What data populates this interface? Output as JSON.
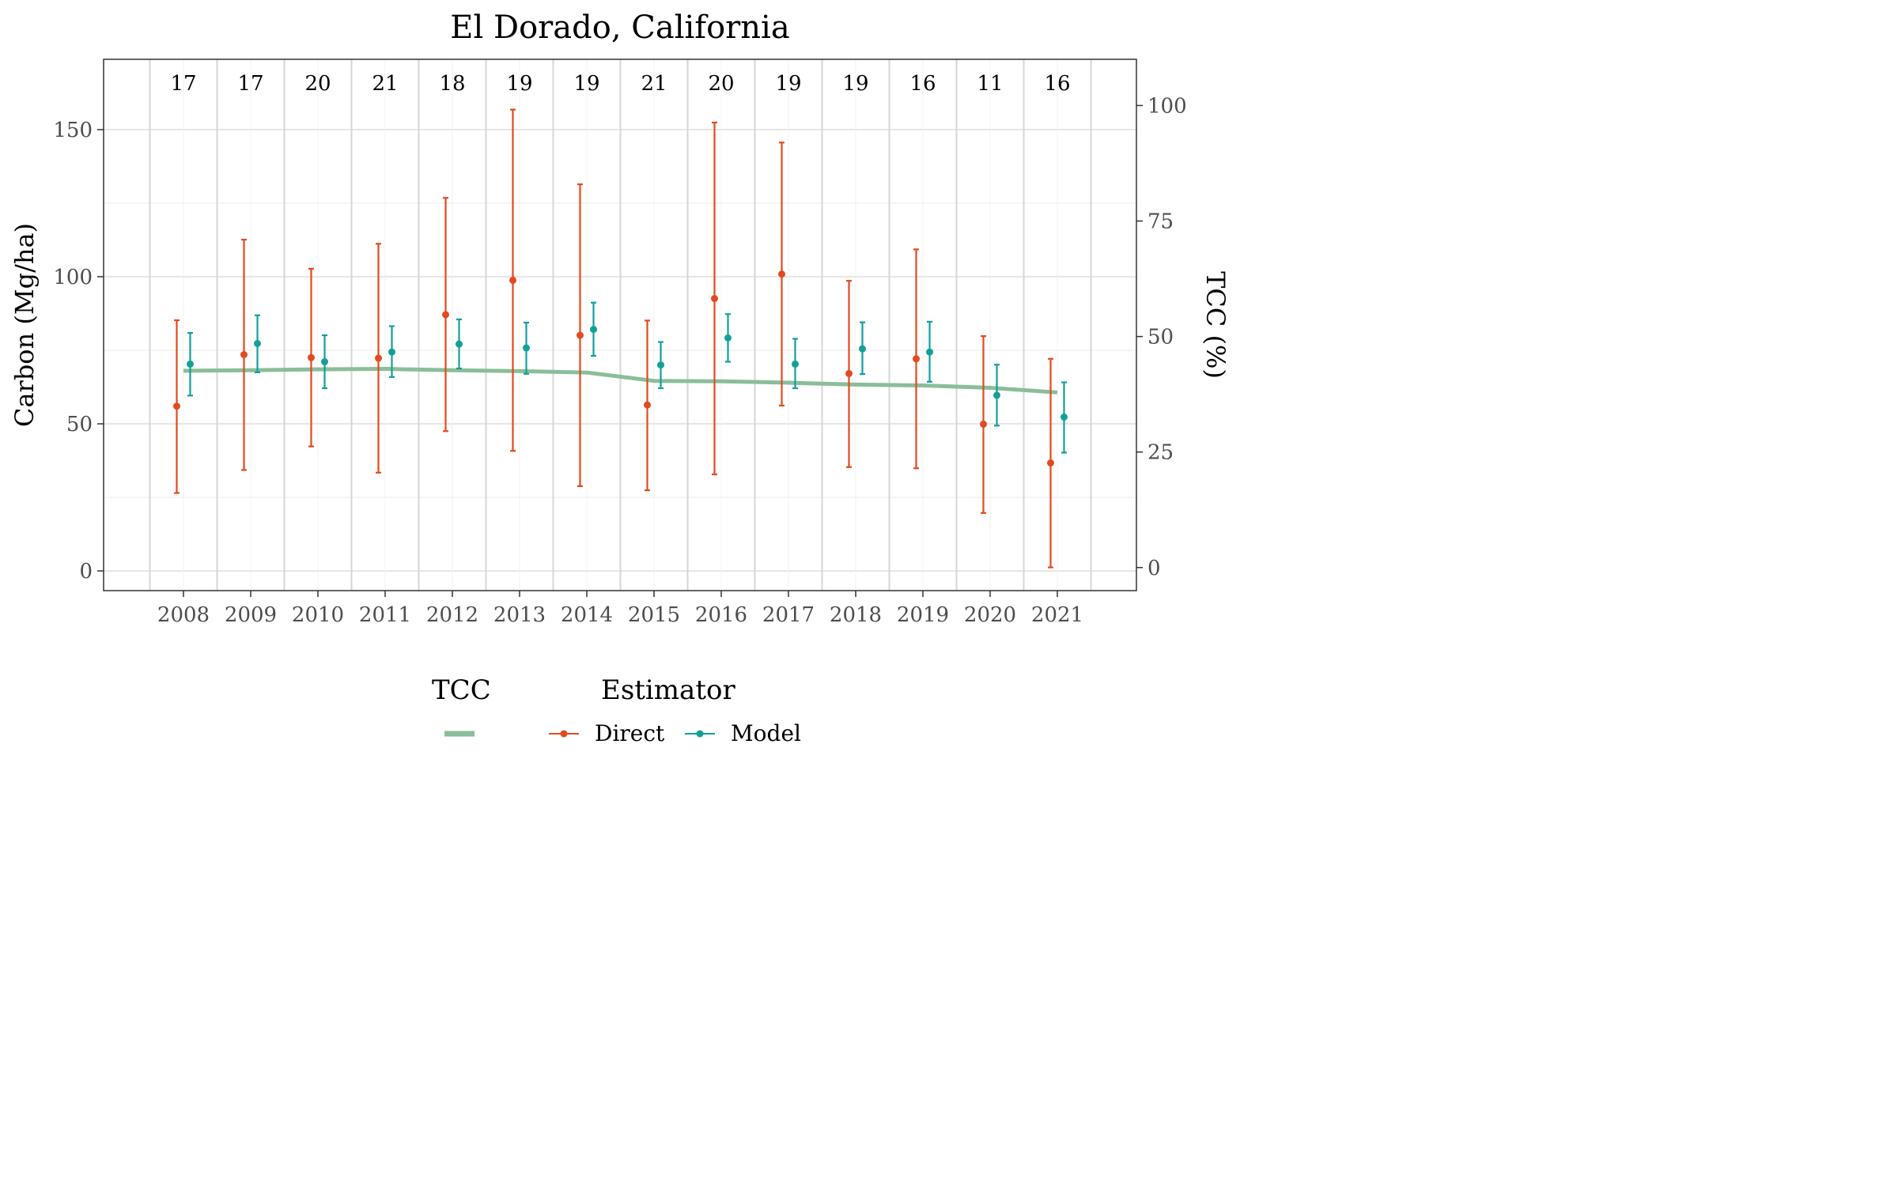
{
  "chart_data": {
    "type": "line",
    "title": "El Dorado, California",
    "ylabel": "Carbon (Mg/ha)",
    "y2label": "TCC (%)",
    "xlabel": "",
    "ylim": [
      -6.7,
      173.9
    ],
    "y2lim": [
      -5,
      110
    ],
    "yticks": [
      0,
      50,
      100,
      150
    ],
    "y2ticks": [
      0,
      25,
      50,
      75,
      100
    ],
    "grid": true,
    "legend_position": "bottom",
    "categories": [
      "2008",
      "2009",
      "2010",
      "2011",
      "2012",
      "2013",
      "2014",
      "2015",
      "2016",
      "2017",
      "2018",
      "2019",
      "2020",
      "2021"
    ],
    "counts": [
      "17",
      "17",
      "20",
      "21",
      "18",
      "19",
      "19",
      "21",
      "20",
      "19",
      "19",
      "16",
      "11",
      "16"
    ],
    "series": [
      {
        "name": "Direct",
        "color": "#E34A1F",
        "values": [
          56,
          73.5,
          72.5,
          72.3,
          87.1,
          98.8,
          80.1,
          56.4,
          92.6,
          100.9,
          67.1,
          72.1,
          49.9,
          36.7
        ],
        "lower": [
          26.5,
          34.3,
          42.3,
          33.4,
          47.5,
          40.8,
          28.8,
          27.4,
          32.8,
          56.2,
          35.3,
          34.9,
          19.7,
          1.2
        ],
        "upper": [
          85.2,
          112.6,
          102.7,
          111.2,
          126.8,
          156.8,
          131.4,
          85.1,
          152.4,
          145.6,
          98.6,
          109.3,
          79.8,
          72.1
        ]
      },
      {
        "name": "Model",
        "color": "#12A09A",
        "values": [
          70.3,
          77.3,
          71.1,
          74.4,
          77.1,
          75.8,
          82.1,
          70.0,
          79.2,
          70.3,
          75.5,
          74.4,
          59.7,
          52.3
        ],
        "lower": [
          59.6,
          67.5,
          62.1,
          65.9,
          68.8,
          67.0,
          73.1,
          62.1,
          71.1,
          62.1,
          66.9,
          64.3,
          49.4,
          40.2
        ],
        "upper": [
          80.9,
          86.9,
          80.1,
          83.2,
          85.5,
          84.4,
          91.2,
          77.8,
          87.3,
          78.9,
          84.5,
          84.7,
          70.1,
          64.1
        ]
      }
    ],
    "tcc": {
      "name": "TCC",
      "color": "#8ABE98",
      "values": [
        42.6,
        42.7,
        42.9,
        43.0,
        42.7,
        42.5,
        42.2,
        40.4,
        40.3,
        40.0,
        39.6,
        39.4,
        38.9,
        37.9
      ]
    },
    "legend": {
      "tcc_title": "TCC",
      "estimator_title": "Estimator",
      "entries": [
        "Direct",
        "Model"
      ]
    }
  }
}
